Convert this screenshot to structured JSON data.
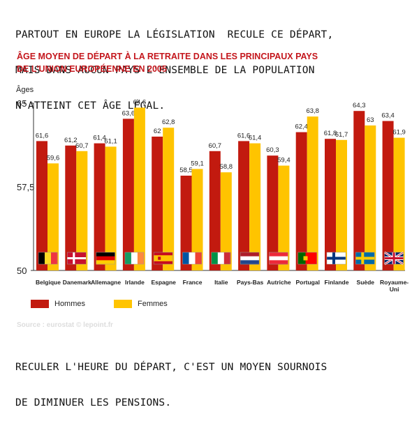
{
  "captions": {
    "top": [
      "PARTOUT EN EUROPE LA LÉGISLATION  RECULE CE DÉPART,",
      "MAIS DANS AUCUN PAYS L'ENSEMBLE DE LA POPULATION",
      "N'ATTEINT CET ÂGE LÉGAL."
    ],
    "bottom": [
      "RECULER L'HEURE DU DÉPART, C'EST UN MOYEN SOURNOIS",
      "DE DIMINUER LES PENSIONS."
    ]
  },
  "source": "Source : eurostat © lepoint.fr",
  "chart_data": {
    "type": "bar",
    "title": [
      "ÂGE MOYEN DE DÉPART À LA RETRAITE DANS LES PRINCIPAUX PAYS",
      "DE L'UNION EUROPÉENNE EN 2005"
    ],
    "ylabel": "Âges",
    "ylim": [
      50,
      65
    ],
    "yticks": [
      "65",
      "57,5",
      "50"
    ],
    "grid": false,
    "legend_position": "bottom-left",
    "categories": [
      "Belgique",
      "Danemark",
      "Allemagne",
      "Irlande",
      "Espagne",
      "France",
      "Italie",
      "Pays-Bas",
      "Autriche",
      "Portugal",
      "Finlande",
      "Suède",
      "Royaume-Uni"
    ],
    "category_labels": [
      [
        "Belgique"
      ],
      [
        "Danemark"
      ],
      [
        "Allemagne"
      ],
      [
        "Irlande"
      ],
      [
        "Espagne"
      ],
      [
        "France"
      ],
      [
        "Italie"
      ],
      [
        "Pays-Bas"
      ],
      [
        "Autriche"
      ],
      [
        "Portugal"
      ],
      [
        "Finlande"
      ],
      [
        "Suède"
      ],
      [
        "Royaume-",
        "Uni"
      ]
    ],
    "series": [
      {
        "name": "Hommes",
        "color": "#c21a0f",
        "values": [
          61.6,
          61.2,
          61.4,
          63.6,
          62,
          58.5,
          60.7,
          61.6,
          60.3,
          62.4,
          61.8,
          64.3,
          63.4
        ],
        "labels": [
          "61,6",
          "61,2",
          "61,4",
          "63,6",
          "62",
          "58,5",
          "60,7",
          "61,6",
          "60,3",
          "62,4",
          "61,8",
          "64,3",
          "63,4"
        ]
      },
      {
        "name": "Femmes",
        "color": "#ffc400",
        "values": [
          59.6,
          60.7,
          61.1,
          64.6,
          62.8,
          59.1,
          58.8,
          61.4,
          59.4,
          63.8,
          61.7,
          63,
          61.9
        ],
        "labels": [
          "59,6",
          "60,7",
          "61,1",
          "64,6",
          "62,8",
          "59,1",
          "58,8",
          "61,4",
          "59,4",
          "63,8",
          "61,7",
          "63",
          "61,9"
        ]
      }
    ],
    "flags": [
      "belgium",
      "denmark",
      "germany",
      "ireland",
      "spain",
      "france",
      "italy",
      "netherlands",
      "austria",
      "portugal",
      "finland",
      "sweden",
      "united-kingdom"
    ]
  }
}
